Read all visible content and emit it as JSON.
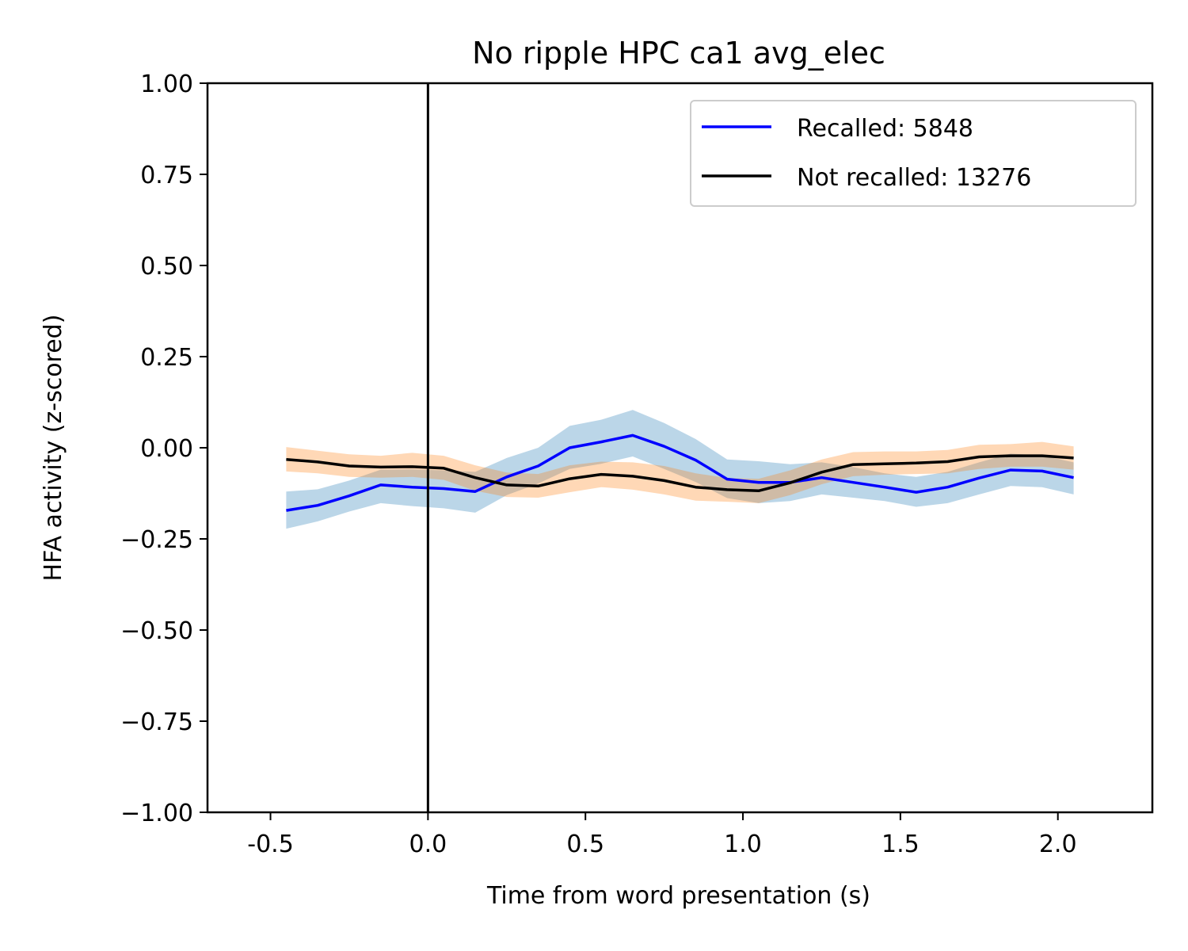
{
  "chart_data": {
    "type": "line",
    "title": "No ripple HPC ca1 avg_elec",
    "xlabel": "Time from word presentation (s)",
    "ylabel": "HFA activity (z-scored)",
    "xlim": [
      -0.7,
      2.3
    ],
    "ylim": [
      -1.0,
      1.0
    ],
    "xticks": [
      -0.5,
      0.0,
      0.5,
      1.0,
      1.5,
      2.0
    ],
    "xtick_labels": [
      "-0.5",
      "0.0",
      "0.5",
      "1.0",
      "1.5",
      "2.0"
    ],
    "yticks": [
      1.0,
      0.75,
      0.5,
      0.25,
      0.0,
      -0.25,
      -0.5,
      -0.75,
      -1.0
    ],
    "ytick_labels": [
      "1.00",
      "0.75",
      "0.50",
      "0.25",
      "0.00",
      "−0.25",
      "−0.50",
      "−0.75",
      "−1.00"
    ],
    "vertical_line_x": 0.0,
    "grid": false,
    "legend_position": "top-right",
    "x": [
      -0.45,
      -0.35,
      -0.25,
      -0.15,
      -0.05,
      0.05,
      0.15,
      0.25,
      0.35,
      0.45,
      0.55,
      0.65,
      0.75,
      0.85,
      0.95,
      1.05,
      1.15,
      1.25,
      1.35,
      1.45,
      1.55,
      1.65,
      1.75,
      1.85,
      1.95,
      2.05
    ],
    "series": [
      {
        "name": "Recalled: 5848",
        "color": "#0000ff",
        "band_color": "#1f77b4",
        "values": [
          -0.172,
          -0.158,
          -0.132,
          -0.102,
          -0.108,
          -0.112,
          -0.12,
          -0.08,
          -0.05,
          0.0,
          0.016,
          0.034,
          0.004,
          -0.034,
          -0.086,
          -0.095,
          -0.095,
          -0.082,
          -0.095,
          -0.108,
          -0.122,
          -0.108,
          -0.083,
          -0.061,
          -0.064,
          -0.082
        ],
        "lower": [
          -0.222,
          -0.202,
          -0.175,
          -0.152,
          -0.16,
          -0.166,
          -0.178,
          -0.13,
          -0.098,
          -0.058,
          -0.044,
          -0.024,
          -0.058,
          -0.094,
          -0.138,
          -0.152,
          -0.146,
          -0.128,
          -0.137,
          -0.146,
          -0.162,
          -0.152,
          -0.128,
          -0.105,
          -0.108,
          -0.128
        ],
        "upper": [
          -0.12,
          -0.114,
          -0.09,
          -0.06,
          -0.059,
          -0.062,
          -0.066,
          -0.028,
          0.0,
          0.06,
          0.077,
          0.104,
          0.068,
          0.024,
          -0.032,
          -0.037,
          -0.045,
          -0.04,
          -0.053,
          -0.07,
          -0.08,
          -0.066,
          -0.04,
          -0.016,
          -0.021,
          -0.04
        ]
      },
      {
        "name": "Not recalled: 13276",
        "color": "#000000",
        "band_color": "#ff7f0e",
        "values": [
          -0.032,
          -0.039,
          -0.05,
          -0.053,
          -0.052,
          -0.056,
          -0.082,
          -0.102,
          -0.105,
          -0.085,
          -0.073,
          -0.078,
          -0.09,
          -0.108,
          -0.115,
          -0.118,
          -0.096,
          -0.067,
          -0.046,
          -0.044,
          -0.042,
          -0.038,
          -0.025,
          -0.022,
          -0.022,
          -0.028
        ],
        "lower": [
          -0.065,
          -0.07,
          -0.08,
          -0.082,
          -0.08,
          -0.088,
          -0.118,
          -0.135,
          -0.137,
          -0.122,
          -0.108,
          -0.115,
          -0.128,
          -0.145,
          -0.148,
          -0.152,
          -0.13,
          -0.1,
          -0.078,
          -0.074,
          -0.072,
          -0.07,
          -0.058,
          -0.052,
          -0.052,
          -0.06
        ],
        "upper": [
          0.002,
          -0.008,
          -0.018,
          -0.022,
          -0.014,
          -0.022,
          -0.048,
          -0.068,
          -0.072,
          -0.048,
          -0.038,
          -0.04,
          -0.05,
          -0.07,
          -0.083,
          -0.085,
          -0.062,
          -0.032,
          -0.012,
          -0.01,
          -0.01,
          -0.006,
          0.008,
          0.01,
          0.016,
          0.004
        ]
      }
    ]
  }
}
